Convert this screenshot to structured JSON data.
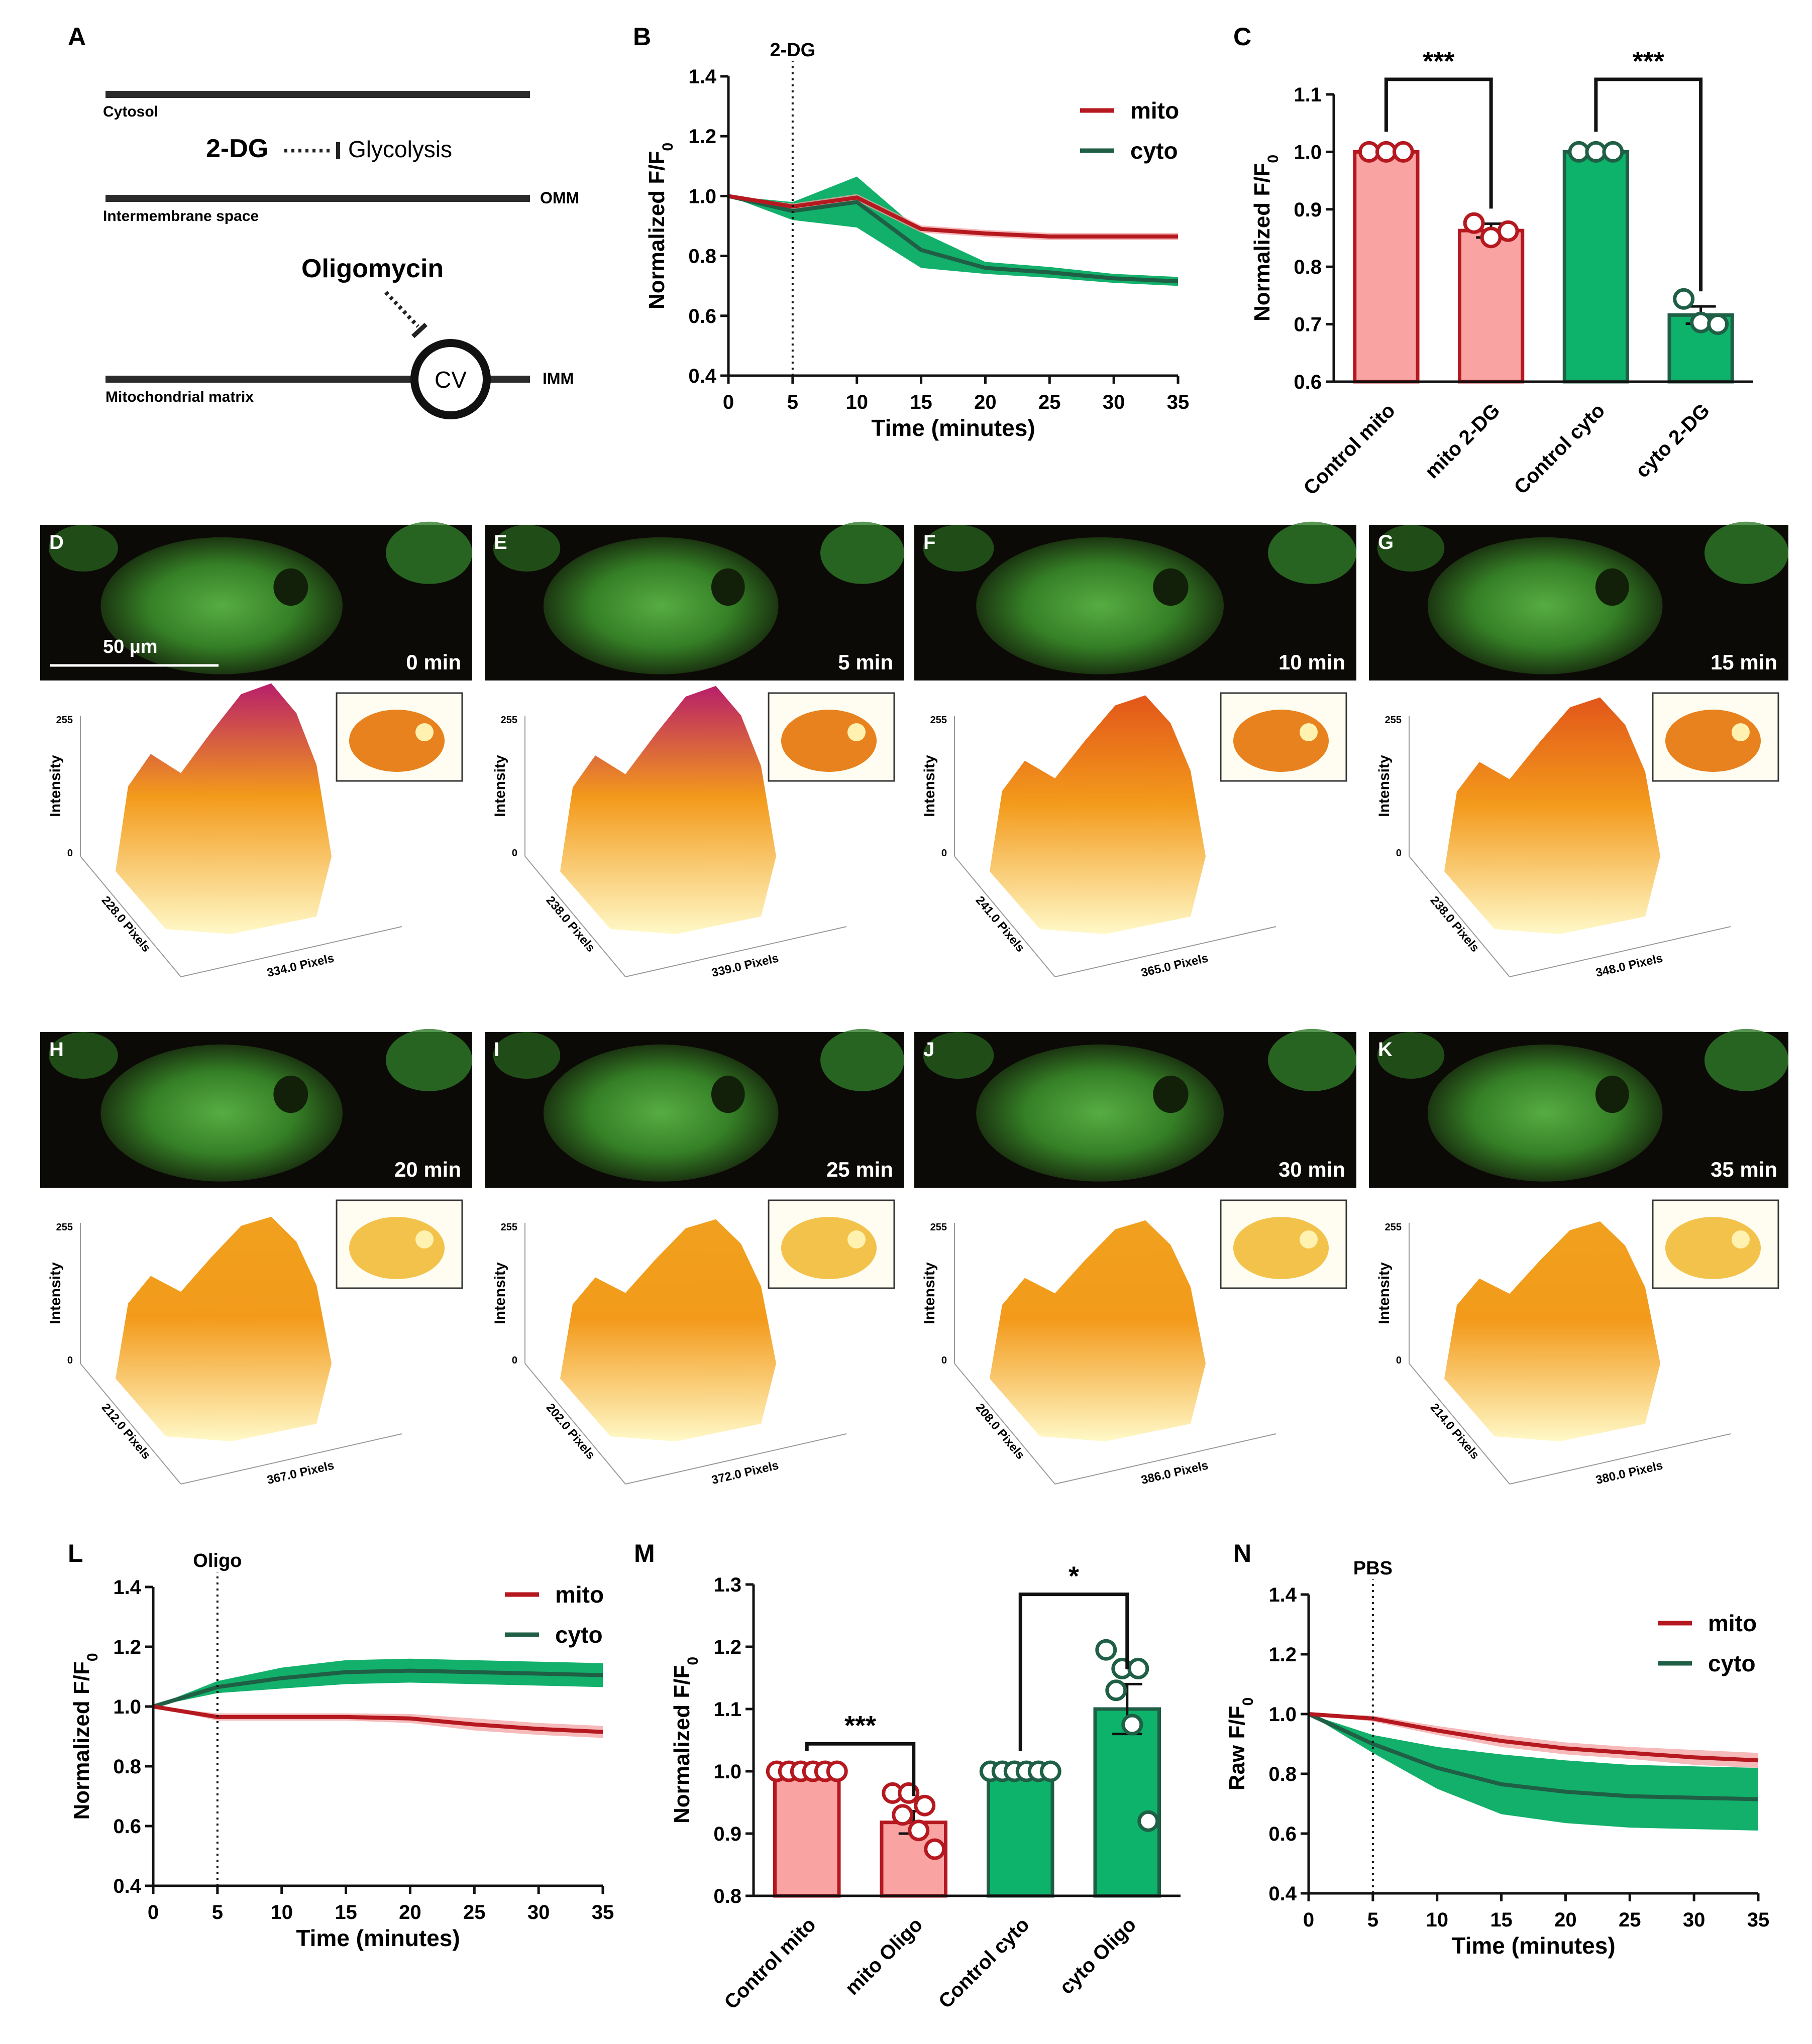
{
  "colors": {
    "mito_line": "#b5181f",
    "mito_band": "#f3a3a3",
    "cyto_line": "#1f5f45",
    "cyto_band": "#12b06b",
    "mito_bar": "#f9a3a2",
    "cyto_bar": "#0db26b",
    "axis": "#111111"
  },
  "panel_letters": [
    "A",
    "B",
    "C",
    "D",
    "E",
    "F",
    "G",
    "H",
    "I",
    "J",
    "K",
    "L",
    "M",
    "N"
  ],
  "schematic": {
    "cytosol": "Cytosol",
    "drug": "2-DG",
    "glycolysis": "Glycolysis",
    "intermembrane": "Intermembrane space",
    "omm": "OMM",
    "oligomycin": "Oligomycin",
    "cv": "CV",
    "matrix": "Mitochondrial matrix",
    "imm": "IMM"
  },
  "scale_bar": "50 µm",
  "images": [
    {
      "label": "D",
      "time": "0 min",
      "ylabel": "Intensity",
      "ymax": "255",
      "ymin": "0",
      "xlen": "228.0 Pixels",
      "ylen": "334.0 Pixels",
      "heat": 0.85
    },
    {
      "label": "E",
      "time": "5 min",
      "ylabel": "Intensity",
      "ymax": "255",
      "ymin": "0",
      "xlen": "238.0 Pixels",
      "ylen": "339.0 Pixels",
      "heat": 0.8
    },
    {
      "label": "F",
      "time": "10 min",
      "ylabel": "Intensity",
      "ymax": "255",
      "ymin": "0",
      "xlen": "241.0 Pixels",
      "ylen": "365.0 Pixels",
      "heat": 0.62
    },
    {
      "label": "G",
      "time": "15 min",
      "ylabel": "Intensity",
      "ymax": "255",
      "ymin": "0",
      "xlen": "238.0 Pixels",
      "ylen": "348.0 Pixels",
      "heat": 0.58
    },
    {
      "label": "H",
      "time": "20 min",
      "ylabel": "Intensity",
      "ymax": "255",
      "ymin": "0",
      "xlen": "212.0 Pixels",
      "ylen": "367.0 Pixels",
      "heat": 0.35
    },
    {
      "label": "I",
      "time": "25 min",
      "ylabel": "Intensity",
      "ymax": "255",
      "ymin": "0",
      "xlen": "202.0 Pixels",
      "ylen": "372.0 Pixels",
      "heat": 0.3
    },
    {
      "label": "J",
      "time": "30 min",
      "ylabel": "Intensity",
      "ymax": "255",
      "ymin": "0",
      "xlen": "208.0 Pixels",
      "ylen": "386.0 Pixels",
      "heat": 0.28
    },
    {
      "label": "K",
      "time": "35 min",
      "ylabel": "Intensity",
      "ymax": "255",
      "ymin": "0",
      "xlen": "214.0 Pixels",
      "ylen": "380.0 Pixels",
      "heat": 0.26
    }
  ],
  "chart_data": [
    {
      "id": "B",
      "type": "line",
      "marker_label": "2-DG",
      "marker_x": 5,
      "xlabel": "Time (minutes)",
      "ylabel": "Normalized F/F0",
      "xlim": [
        0,
        35
      ],
      "ylim": [
        0.4,
        1.4
      ],
      "xticks": [
        0,
        5,
        10,
        15,
        20,
        25,
        30,
        35
      ],
      "yticks": [
        "0.4",
        "0.6",
        "0.8",
        "1.0",
        "1.2",
        "1.4"
      ],
      "x": [
        0,
        5,
        10,
        15,
        20,
        25,
        30,
        35
      ],
      "series": [
        {
          "name": "mito",
          "values": [
            1.0,
            0.965,
            0.995,
            0.89,
            0.875,
            0.865,
            0.865,
            0.865
          ],
          "err": [
            0,
            0.01,
            0.012,
            0.012,
            0.012,
            0.012,
            0.012,
            0.012
          ]
        },
        {
          "name": "cyto",
          "values": [
            1.0,
            0.95,
            0.98,
            0.82,
            0.76,
            0.745,
            0.725,
            0.715
          ],
          "err": [
            0,
            0.03,
            0.085,
            0.06,
            0.02,
            0.018,
            0.015,
            0.015
          ]
        }
      ]
    },
    {
      "id": "C",
      "type": "bar",
      "ylabel": "Normalized F/F0",
      "ylim": [
        0.6,
        1.1
      ],
      "yticks": [
        "0.6",
        "0.7",
        "0.8",
        "0.9",
        "1.0",
        "1.1"
      ],
      "categories": [
        "Control mito",
        "mito 2-DG",
        "Control cyto",
        "cyto 2-DG"
      ],
      "values": [
        1.0,
        0.863,
        1.0,
        0.716
      ],
      "sem": [
        0,
        0.012,
        0,
        0.015
      ],
      "points": [
        [
          1.0,
          1.0,
          1.0
        ],
        [
          0.876,
          0.851,
          0.862
        ],
        [
          1.0,
          1.0,
          1.0
        ],
        [
          0.744,
          0.703,
          0.7
        ]
      ],
      "sig": [
        {
          "pair": [
            0,
            1
          ],
          "label": "***",
          "y": 1.1
        },
        {
          "pair": [
            2,
            3
          ],
          "label": "***",
          "y": 1.1
        }
      ]
    },
    {
      "id": "L",
      "type": "line",
      "marker_label": "Oligo",
      "marker_x": 5,
      "xlabel": "Time (minutes)",
      "ylabel": "Normalized F/F0",
      "xlim": [
        0,
        35
      ],
      "ylim": [
        0.4,
        1.4
      ],
      "xticks": [
        0,
        5,
        10,
        15,
        20,
        25,
        30,
        35
      ],
      "yticks": [
        "0.4",
        "0.6",
        "0.8",
        "1.0",
        "1.2",
        "1.4"
      ],
      "x": [
        0,
        5,
        10,
        15,
        20,
        25,
        30,
        35
      ],
      "series": [
        {
          "name": "mito",
          "values": [
            1.0,
            0.965,
            0.965,
            0.965,
            0.96,
            0.94,
            0.925,
            0.915
          ],
          "err": [
            0,
            0.012,
            0.012,
            0.012,
            0.015,
            0.02,
            0.02,
            0.02
          ]
        },
        {
          "name": "cyto",
          "values": [
            1.0,
            1.065,
            1.095,
            1.115,
            1.12,
            1.115,
            1.11,
            1.105
          ],
          "err": [
            0,
            0.02,
            0.035,
            0.04,
            0.04,
            0.04,
            0.04,
            0.04
          ]
        }
      ]
    },
    {
      "id": "M",
      "type": "bar",
      "ylabel": "Normalized F/F0",
      "ylim": [
        0.8,
        1.3
      ],
      "yticks": [
        "0.8",
        "0.9",
        "1.0",
        "1.1",
        "1.2",
        "1.3"
      ],
      "categories": [
        "Control mito",
        "mito Oligo",
        "Control cyto",
        "cyto Oligo"
      ],
      "values": [
        1.0,
        0.918,
        1.0,
        1.1
      ],
      "sem": [
        0,
        0.018,
        0,
        0.04
      ],
      "points": [
        [
          1.0,
          1.0,
          1.0,
          1.0,
          1.0,
          1.0
        ],
        [
          0.965,
          0.965,
          0.945,
          0.93,
          0.905,
          0.875
        ],
        [
          1.0,
          1.0,
          1.0,
          1.0,
          1.0,
          1.0
        ],
        [
          1.195,
          1.165,
          1.165,
          1.13,
          1.075,
          0.92
        ]
      ],
      "sig": [
        {
          "pair": [
            0,
            1
          ],
          "label": "***",
          "y": 1.02
        },
        {
          "pair": [
            2,
            3
          ],
          "label": "*",
          "y": 1.26
        }
      ]
    },
    {
      "id": "N",
      "type": "line",
      "marker_label": "PBS",
      "marker_x": 5,
      "xlabel": "Time (minutes)",
      "ylabel": "Raw F/F0",
      "xlim": [
        0,
        35
      ],
      "ylim": [
        0.4,
        1.4
      ],
      "xticks": [
        0,
        5,
        10,
        15,
        20,
        25,
        30,
        35
      ],
      "yticks": [
        "0.4",
        "0.6",
        "0.8",
        "1.0",
        "1.2",
        "1.4"
      ],
      "x": [
        0,
        5,
        10,
        15,
        20,
        25,
        30,
        35
      ],
      "series": [
        {
          "name": "mito",
          "values": [
            1.0,
            0.985,
            0.945,
            0.91,
            0.885,
            0.87,
            0.855,
            0.845
          ],
          "err": [
            0,
            0.01,
            0.015,
            0.02,
            0.02,
            0.02,
            0.025,
            0.025
          ]
        },
        {
          "name": "cyto",
          "values": [
            1.0,
            0.9,
            0.82,
            0.765,
            0.74,
            0.725,
            0.72,
            0.715
          ],
          "err": [
            0,
            0.03,
            0.07,
            0.1,
            0.105,
            0.105,
            0.105,
            0.105
          ]
        }
      ]
    }
  ]
}
